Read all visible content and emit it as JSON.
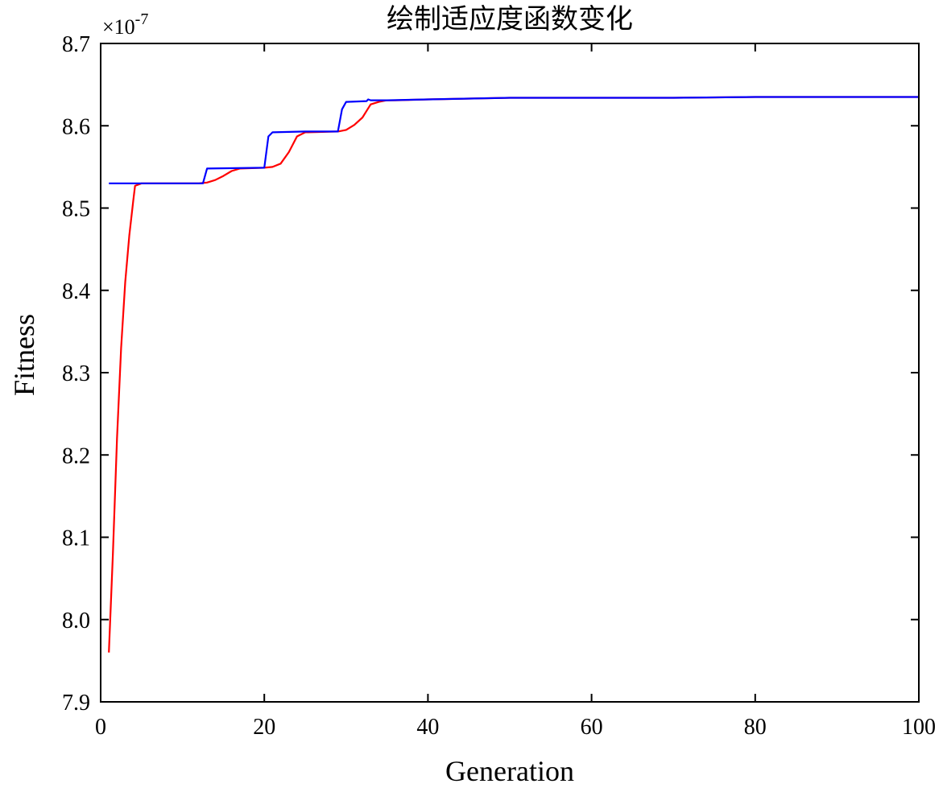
{
  "chart_data": {
    "type": "line",
    "title": "绘制适应度函数变化",
    "xlabel": "Generation",
    "ylabel": "Fitness",
    "y_exponent": {
      "base": "×10",
      "power": "-7"
    },
    "xlim": [
      0,
      100
    ],
    "ylim": [
      7.9,
      8.7
    ],
    "xticks": [
      0,
      20,
      40,
      60,
      80,
      100
    ],
    "xtick_labels": [
      "0",
      "20",
      "40",
      "60",
      "80",
      "100"
    ],
    "yticks": [
      7.9,
      8.0,
      8.1,
      8.2,
      8.3,
      8.4,
      8.5,
      8.6,
      8.7
    ],
    "ytick_labels": [
      "7.9",
      "8.0",
      "8.1",
      "8.2",
      "8.3",
      "8.4",
      "8.5",
      "8.6",
      "8.7"
    ],
    "grid": false,
    "series": [
      {
        "color": "#ff0000",
        "x": [
          1,
          1.5,
          2,
          2.5,
          3,
          3.5,
          4,
          4.2,
          5,
          12,
          13,
          14,
          15,
          16,
          17,
          20,
          21,
          22,
          23,
          24,
          25,
          29,
          30,
          31,
          32,
          32.5,
          33,
          34,
          35,
          36,
          40,
          45,
          50,
          60,
          70,
          80,
          90,
          100
        ],
        "y": [
          7.96,
          8.08,
          8.22,
          8.33,
          8.41,
          8.467,
          8.51,
          8.527,
          8.53,
          8.53,
          8.531,
          8.534,
          8.539,
          8.545,
          8.548,
          8.549,
          8.55,
          8.554,
          8.568,
          8.587,
          8.592,
          8.593,
          8.595,
          8.601,
          8.61,
          8.618,
          8.626,
          8.629,
          8.631,
          8.631,
          8.632,
          8.633,
          8.634,
          8.634,
          8.634,
          8.635,
          8.635,
          8.635
        ]
      },
      {
        "color": "#0000ff",
        "x": [
          1,
          12.5,
          13,
          20,
          20.5,
          21,
          25,
          29,
          29.5,
          30,
          32.5,
          32.7,
          33,
          35,
          40,
          45,
          50,
          60,
          70,
          80,
          90,
          100
        ],
        "y": [
          8.53,
          8.53,
          8.548,
          8.549,
          8.587,
          8.592,
          8.593,
          8.593,
          8.62,
          8.629,
          8.63,
          8.632,
          8.631,
          8.631,
          8.632,
          8.633,
          8.634,
          8.634,
          8.634,
          8.635,
          8.635,
          8.635
        ]
      }
    ]
  }
}
